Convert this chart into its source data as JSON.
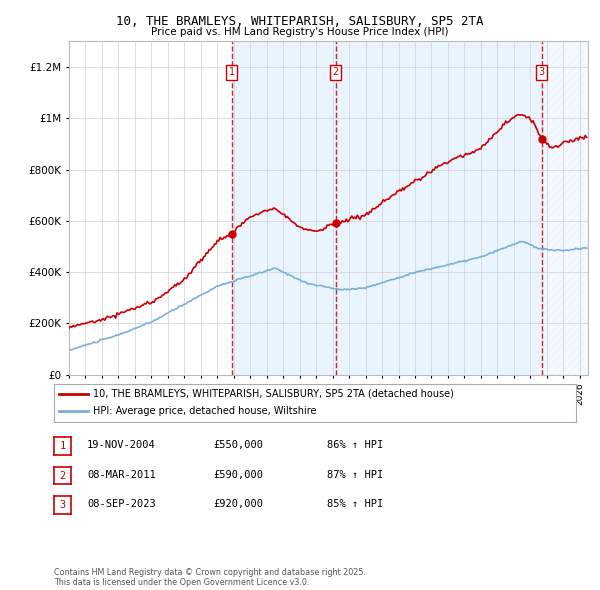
{
  "title": "10, THE BRAMLEYS, WHITEPARISH, SALISBURY, SP5 2TA",
  "subtitle": "Price paid vs. HM Land Registry's House Price Index (HPI)",
  "yticks": [
    0,
    200000,
    400000,
    600000,
    800000,
    1000000,
    1200000
  ],
  "ytick_labels": [
    "£0",
    "£200K",
    "£400K",
    "£600K",
    "£800K",
    "£1M",
    "£1.2M"
  ],
  "xlim_start": 1995.0,
  "xlim_end": 2026.5,
  "ylim": [
    0,
    1300000
  ],
  "red_line_color": "#cc0000",
  "blue_line_color": "#7bafd4",
  "purchase_dates": [
    2004.89,
    2011.18,
    2023.69
  ],
  "purchase_prices": [
    550000,
    590000,
    920000
  ],
  "purchase_labels": [
    "1",
    "2",
    "3"
  ],
  "vspan_color": "#ddeeff",
  "legend_red": "10, THE BRAMLEYS, WHITEPARISH, SALISBURY, SP5 2TA (detached house)",
  "legend_blue": "HPI: Average price, detached house, Wiltshire",
  "table_rows": [
    [
      "1",
      "19-NOV-2004",
      "£550,000",
      "86% ↑ HPI"
    ],
    [
      "2",
      "08-MAR-2011",
      "£590,000",
      "87% ↑ HPI"
    ],
    [
      "3",
      "08-SEP-2023",
      "£920,000",
      "85% ↑ HPI"
    ]
  ],
  "footnote": "Contains HM Land Registry data © Crown copyright and database right 2025.\nThis data is licensed under the Open Government Licence v3.0.",
  "background_color": "#ffffff"
}
